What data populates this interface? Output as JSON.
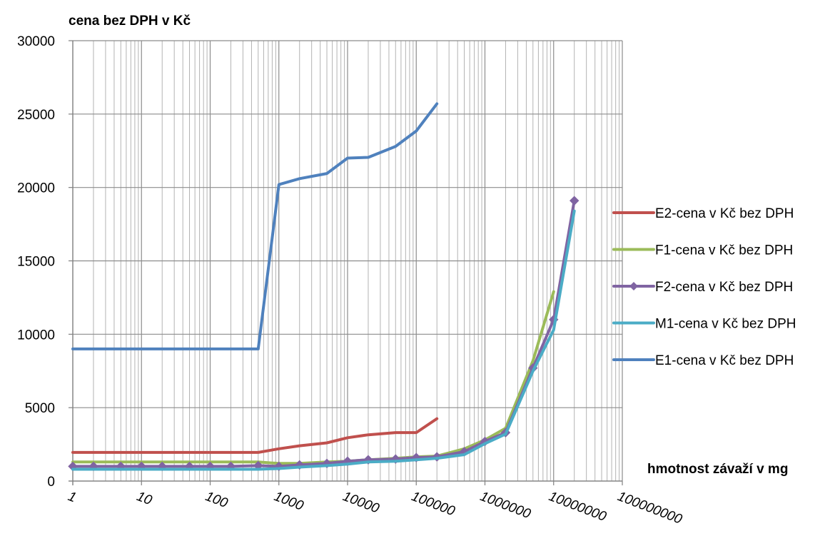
{
  "chart_data": {
    "type": "line",
    "title": "",
    "ylabel": "cena bez DPH v Kč",
    "xlabel": "hmotnost závaží v mg",
    "x_scale": "log",
    "xlim": [
      1,
      100000000
    ],
    "ylim": [
      0,
      30000
    ],
    "grid": true,
    "legend_position": "right",
    "y_ticks": [
      "0",
      "5000",
      "10000",
      "15000",
      "20000",
      "25000",
      "30000"
    ],
    "x_ticks": [
      "1",
      "10",
      "100",
      "1000",
      "10000",
      "100000",
      "1000000",
      "10000000",
      "100000000"
    ],
    "x": [
      1,
      2,
      5,
      10,
      20,
      50,
      100,
      200,
      500,
      1000,
      2000,
      5000,
      10000,
      20000,
      50000,
      100000,
      200000,
      500000,
      1000000,
      2000000,
      5000000,
      10000000,
      20000000
    ],
    "series": [
      {
        "name": "E2-cena v Kč bez DPH",
        "color": "#c0504d",
        "marker": "none",
        "values": [
          1950,
          1950,
          1950,
          1950,
          1950,
          1950,
          1950,
          1950,
          1950,
          2200,
          2400,
          2600,
          2950,
          3150,
          3300,
          3300,
          4250,
          null,
          null,
          null,
          null,
          null,
          null
        ]
      },
      {
        "name": "F1-cena v Kč bez DPH",
        "color": "#9bbb59",
        "marker": "none",
        "values": [
          1300,
          1300,
          1300,
          1300,
          1300,
          1300,
          1300,
          1300,
          1300,
          1200,
          1200,
          1300,
          1350,
          1450,
          1550,
          1650,
          1700,
          2200,
          2800,
          3600,
          8200,
          12900,
          null
        ]
      },
      {
        "name": "F2-cena v Kč bez DPH",
        "color": "#8064a2",
        "marker": "diamond",
        "values": [
          1000,
          1000,
          1000,
          1000,
          1000,
          1000,
          1000,
          1000,
          1050,
          1000,
          1100,
          1200,
          1350,
          1450,
          1500,
          1600,
          1650,
          2000,
          2700,
          3300,
          7700,
          11000,
          19100
        ]
      },
      {
        "name": "M1-cena v Kč bez DPH",
        "color": "#4bacc6",
        "marker": "none",
        "values": [
          800,
          800,
          800,
          800,
          800,
          800,
          800,
          800,
          800,
          850,
          950,
          1050,
          1150,
          1300,
          1350,
          1450,
          1550,
          1800,
          2550,
          3200,
          7500,
          10300,
          18400
        ]
      },
      {
        "name": "E1-cena v Kč bez DPH",
        "color": "#4f81bd",
        "marker": "none",
        "values": [
          9000,
          9000,
          9000,
          9000,
          9000,
          9000,
          9000,
          9000,
          9000,
          20200,
          20600,
          20950,
          22000,
          22050,
          22800,
          23850,
          25700,
          null,
          null,
          null,
          null,
          null,
          null
        ]
      }
    ]
  }
}
